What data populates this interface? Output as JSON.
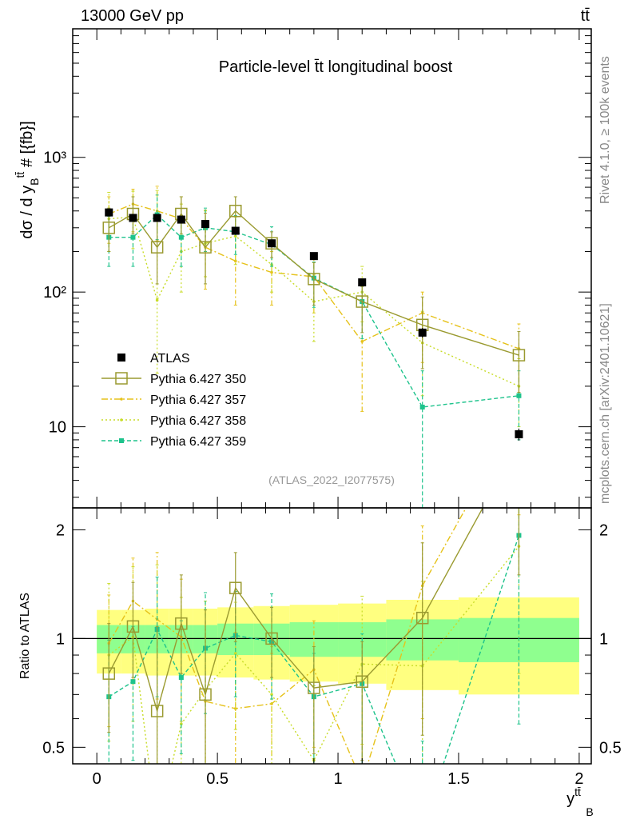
{
  "header": {
    "energy": "13000 GeV pp",
    "process": "tt̄"
  },
  "side_labels": {
    "rivet": "Rivet 4.1.0, ≥ 100k events",
    "mcplots": "mcplots.cern.ch [arXiv:2401.10621]"
  },
  "colors": {
    "atlas": "#000000",
    "p350": "#9a9a30",
    "p357": "#e6c21a",
    "p358": "#c8dc28",
    "p359": "#1ec38c",
    "band_outer": "#ffff80",
    "band_inner": "#8fff8f"
  },
  "chart_data": [
    {
      "type": "line",
      "title": "Particle-level t̄t longitudinal boost",
      "ylabel": "dσ / d y_B^{tt̄} # [{fb}]",
      "xlabel": "y_B^{tt̄}",
      "yscale": "log",
      "xlim": [
        -0.1,
        2.05
      ],
      "ylim": [
        2.5,
        9000
      ],
      "x_ticks": [
        "0",
        "0.5",
        "1",
        "1.5",
        "2"
      ],
      "y_ticks": [
        "10",
        "10²",
        "10³"
      ],
      "annotation": "(ATLAS_2022_I2077575)",
      "legend_position": "bottom-left",
      "bins": [
        [
          0.0,
          0.1
        ],
        [
          0.1,
          0.2
        ],
        [
          0.2,
          0.3
        ],
        [
          0.3,
          0.4
        ],
        [
          0.4,
          0.5
        ],
        [
          0.5,
          0.65
        ],
        [
          0.65,
          0.8
        ],
        [
          0.8,
          1.0
        ],
        [
          1.0,
          1.2
        ],
        [
          1.2,
          1.5
        ],
        [
          1.5,
          2.0
        ]
      ],
      "x": [
        0.05,
        0.15,
        0.25,
        0.35,
        0.45,
        0.575,
        0.725,
        0.9,
        1.1,
        1.35,
        1.75
      ],
      "series": [
        {
          "name": "ATLAS",
          "key": "atlas",
          "style": "marker",
          "values": [
            390,
            355,
            355,
            345,
            320,
            285,
            230,
            185,
            118,
            50,
            8.8
          ],
          "err_lo": [
            20,
            20,
            20,
            20,
            20,
            15,
            12,
            10,
            7,
            4,
            0.9
          ],
          "err_hi": [
            20,
            20,
            20,
            20,
            20,
            15,
            12,
            10,
            7,
            4,
            0.9
          ]
        },
        {
          "name": "Pythia 6.427 350",
          "key": "p350",
          "style": "solid",
          "values": [
            300,
            380,
            215,
            380,
            215,
            400,
            230,
            125,
            85,
            57,
            34
          ],
          "err_lo": [
            100,
            110,
            100,
            110,
            100,
            120,
            50,
            45,
            35,
            30,
            16
          ],
          "err_hi": [
            120,
            130,
            160,
            130,
            170,
            110,
            50,
            40,
            25,
            35,
            17
          ]
        },
        {
          "name": "Pythia 6.427 357",
          "key": "p357",
          "style": "dashdot",
          "values": [
            380,
            450,
            400,
            350,
            215,
            170,
            140,
            130,
            43,
            70,
            38
          ],
          "err_lo": [
            150,
            170,
            160,
            150,
            110,
            90,
            60,
            60,
            30,
            40,
            20
          ],
          "err_hi": [
            130,
            130,
            210,
            160,
            190,
            120,
            60,
            60,
            50,
            30,
            20
          ]
        },
        {
          "name": "Pythia 6.427 358",
          "key": "p358",
          "style": "dotted",
          "values": [
            350,
            360,
            87,
            200,
            230,
            260,
            160,
            85,
            100,
            42,
            20
          ],
          "err_lo": [
            150,
            150,
            62,
            100,
            100,
            100,
            60,
            42,
            40,
            25,
            10
          ],
          "err_hi": [
            200,
            200,
            480,
            250,
            170,
            100,
            60,
            50,
            55,
            30,
            12
          ]
        },
        {
          "name": "Pythia 6.427 359",
          "key": "p359",
          "style": "dashed",
          "values": [
            255,
            255,
            375,
            255,
            300,
            280,
            225,
            127,
            85,
            14,
            17
          ],
          "err_lo": [
            100,
            100,
            130,
            100,
            100,
            90,
            70,
            50,
            40,
            12,
            9
          ],
          "err_hi": [
            110,
            110,
            150,
            110,
            120,
            90,
            80,
            40,
            30,
            12,
            9
          ]
        }
      ]
    },
    {
      "type": "line",
      "ylabel": "Ratio to ATLAS",
      "yscale": "log",
      "ylim": [
        0.45,
        2.3
      ],
      "y_ticks": [
        "0.5",
        "1",
        "2"
      ],
      "band_inner": [
        0.09,
        0.09,
        0.09,
        0.09,
        0.09,
        0.1,
        0.1,
        0.11,
        0.11,
        0.13,
        0.14
      ],
      "band_outer": [
        0.2,
        0.2,
        0.21,
        0.21,
        0.21,
        0.22,
        0.23,
        0.24,
        0.25,
        0.28,
        0.3
      ],
      "series": [
        {
          "key": "p350",
          "values": [
            0.8,
            1.08,
            0.63,
            1.1,
            0.7,
            1.38,
            1.0,
            0.73,
            0.76,
            1.14,
            3.5
          ],
          "err_lo": [
            0.25,
            0.3,
            0.28,
            0.3,
            0.3,
            0.4,
            0.22,
            0.25,
            0.3,
            0.6,
            2
          ],
          "err_hi": [
            0.3,
            0.35,
            0.45,
            0.4,
            0.5,
            0.35,
            0.22,
            0.22,
            0.22,
            0.7,
            2
          ]
        },
        {
          "key": "p357",
          "values": [
            0.97,
            1.27,
            1.13,
            1.01,
            0.67,
            0.64,
            0.66,
            0.82,
            0.4,
            1.4,
            4.2
          ],
          "err_lo": [
            0.4,
            0.5,
            0.45,
            0.42,
            0.35,
            0.3,
            0.25,
            0.32,
            0.25,
            0.8,
            2
          ],
          "err_hi": [
            0.35,
            0.4,
            0.6,
            0.45,
            0.6,
            0.4,
            0.25,
            0.3,
            0.45,
            0.65,
            2
          ]
        },
        {
          "key": "p358",
          "values": [
            0.9,
            1.01,
            0.25,
            0.58,
            0.72,
            0.91,
            0.7,
            0.46,
            0.85,
            0.84,
            1.8
          ],
          "err_lo": [
            0.38,
            0.42,
            0.18,
            0.3,
            0.32,
            0.35,
            0.25,
            0.22,
            0.34,
            0.5,
            1
          ],
          "err_hi": [
            0.52,
            0.57,
            1.35,
            0.72,
            0.55,
            0.35,
            0.25,
            0.28,
            0.46,
            0.6,
            1.1
          ]
        },
        {
          "key": "p359",
          "values": [
            0.69,
            0.76,
            1.06,
            0.78,
            0.94,
            1.02,
            0.98,
            0.69,
            0.75,
            0.28,
            1.93
          ],
          "err_lo": [
            0.27,
            0.3,
            0.37,
            0.3,
            0.32,
            0.33,
            0.3,
            0.26,
            0.35,
            0.25,
            1.35
          ],
          "err_hi": [
            0.3,
            0.32,
            0.42,
            0.34,
            0.4,
            0.33,
            0.35,
            0.22,
            0.28,
            0.24,
            1.2
          ]
        }
      ]
    }
  ]
}
